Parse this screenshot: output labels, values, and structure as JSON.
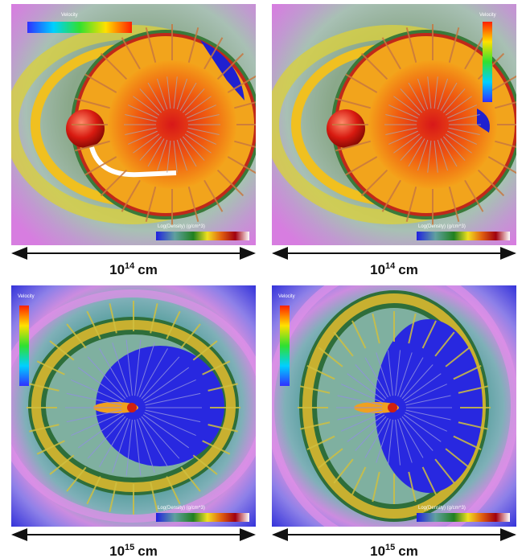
{
  "panels": [
    {
      "velocity_label": "Velocity",
      "density_label": "Log(Density) (g/cm^3)",
      "scale": {
        "base": "10",
        "exponent": "14",
        "unit": "cm"
      }
    },
    {
      "velocity_label": "Velocity",
      "density_label": "Log(Density) (g/cm^3)",
      "scale": {
        "base": "10",
        "exponent": "14",
        "unit": "cm"
      }
    },
    {
      "velocity_label": "Velocity",
      "density_label": "Log(Density) (g/cm^3)",
      "scale": {
        "base": "10",
        "exponent": "15",
        "unit": "cm"
      }
    },
    {
      "velocity_label": "Velocity",
      "density_label": "Log(Density) (g/cm^3)",
      "scale": {
        "base": "10",
        "exponent": "15",
        "unit": "cm"
      }
    }
  ]
}
